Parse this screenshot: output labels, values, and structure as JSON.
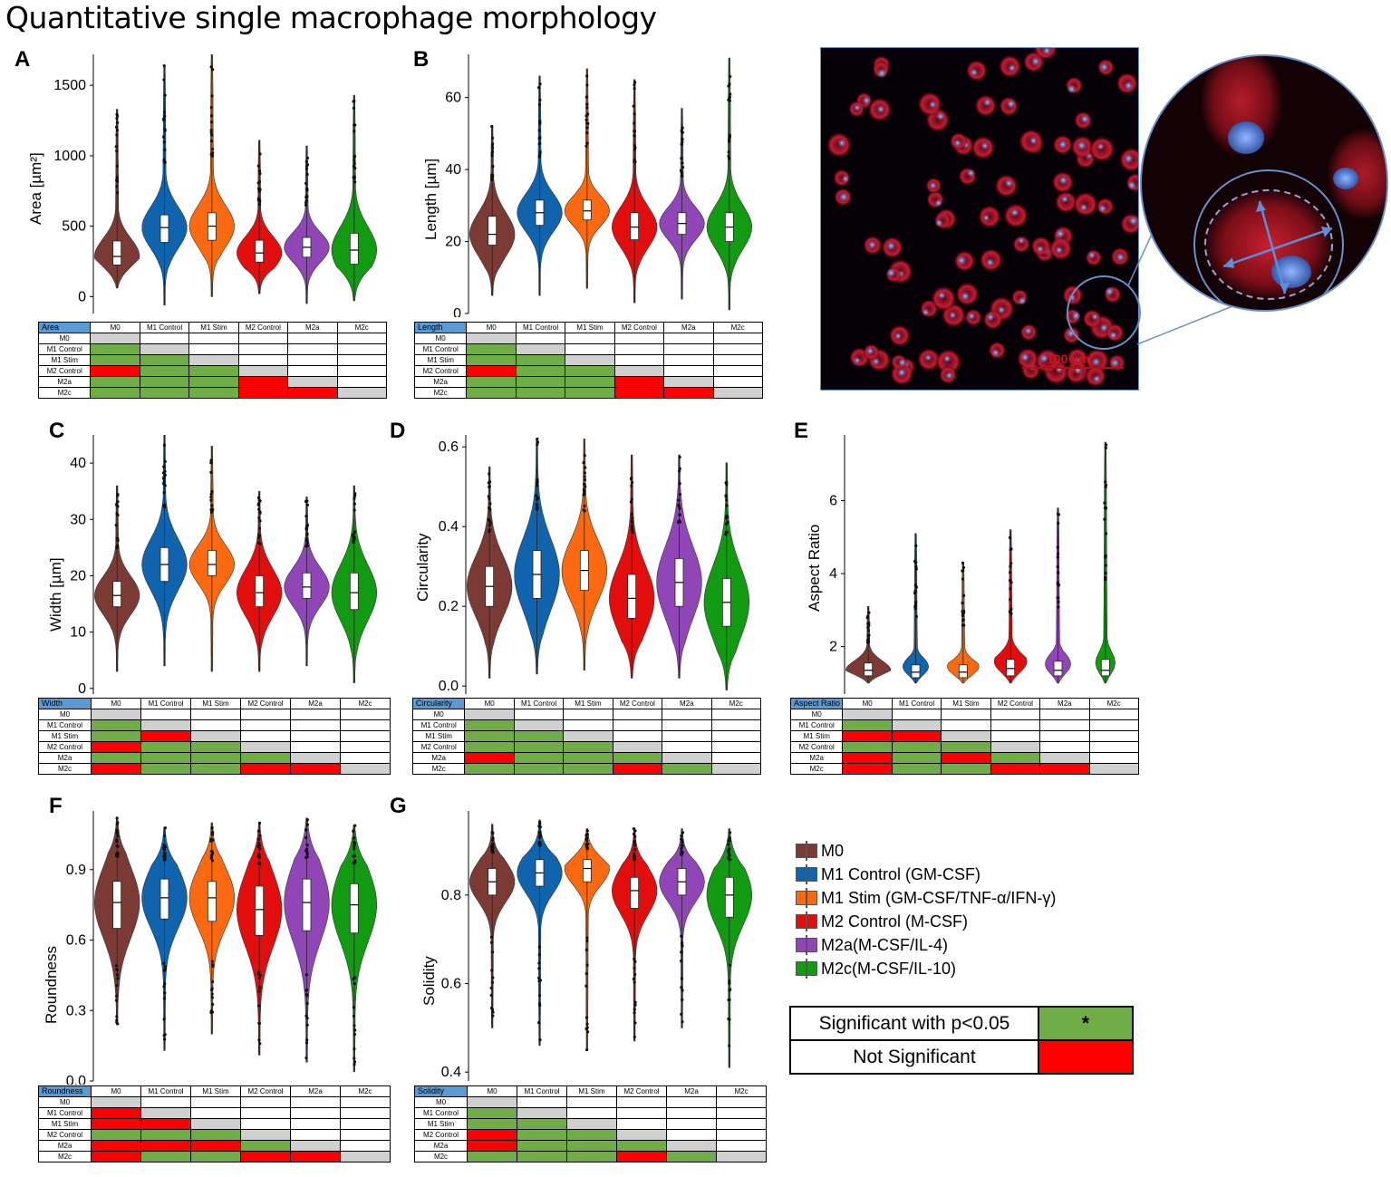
{
  "title": "Quantitative single macrophage morphology",
  "groups": [
    "M0",
    "M1 Control",
    "M1 Stim",
    "M2 Control",
    "M2a",
    "M2c"
  ],
  "colors": [
    "#7b3b34",
    "#1064ad",
    "#fb6a10",
    "#e20e0e",
    "#9146b8",
    "#129a12"
  ],
  "legend": {
    "items": [
      "M0",
      "M1 Control (GM-CSF)",
      "M1 Stim (GM-CSF/TNF-α/IFN-γ)",
      "M2 Control (M-CSF)",
      "M2a(M-CSF/IL-4)",
      "M2c(M-CSF/IL-10)"
    ],
    "significant_label": "Significant with p<0.05",
    "significant_symbol": "*",
    "not_significant_label": "Not Significant",
    "significant_color": "#70ad47",
    "not_significant_color": "#ff0000"
  },
  "micrograph": {
    "scale_label": "100 µm"
  },
  "chart_data": [
    {
      "type": "violin",
      "letter": "A",
      "ylabel": "Area [µm²]",
      "ylim": [
        -120,
        1720
      ],
      "yticks": [
        0,
        500,
        1000,
        1500
      ],
      "ytick_labels": [
        "0",
        "500",
        "1000",
        "1500"
      ],
      "series": [
        {
          "median": 285,
          "q1": 225,
          "q3": 395,
          "min": 60,
          "max": 1330
        },
        {
          "median": 490,
          "q1": 385,
          "q3": 580,
          "min": -60,
          "max": 1640
        },
        {
          "median": 500,
          "q1": 400,
          "q3": 595,
          "min": 0,
          "max": 1740
        },
        {
          "median": 310,
          "q1": 245,
          "q3": 400,
          "min": 20,
          "max": 1110
        },
        {
          "median": 350,
          "q1": 280,
          "q3": 420,
          "min": -50,
          "max": 1070
        },
        {
          "median": 330,
          "q1": 230,
          "q3": 450,
          "min": -30,
          "max": 1430
        }
      ],
      "table": {
        "corner": "Area",
        "cells": [
          [],
          [
            "g"
          ],
          [
            "g",
            "g"
          ],
          [
            "r",
            "g",
            "g"
          ],
          [
            "g",
            "g",
            "g",
            "r"
          ],
          [
            "g",
            "g",
            "g",
            "r",
            "r"
          ]
        ]
      }
    },
    {
      "type": "violin",
      "letter": "B",
      "ylabel": "Length [µm]",
      "ylim": [
        0,
        72
      ],
      "yticks": [
        0,
        20,
        40,
        60
      ],
      "ytick_labels": [
        "0",
        "20",
        "40",
        "60"
      ],
      "series": [
        {
          "median": 22,
          "q1": 19,
          "q3": 27,
          "min": 5,
          "max": 52
        },
        {
          "median": 28,
          "q1": 24.5,
          "q3": 31.5,
          "min": 5,
          "max": 66
        },
        {
          "median": 28.5,
          "q1": 26,
          "q3": 31.5,
          "min": 7,
          "max": 68
        },
        {
          "median": 24,
          "q1": 20.5,
          "q3": 28,
          "min": 3,
          "max": 65
        },
        {
          "median": 25,
          "q1": 22,
          "q3": 28,
          "min": 4,
          "max": 57
        },
        {
          "median": 24,
          "q1": 20,
          "q3": 28,
          "min": 1,
          "max": 71
        }
      ],
      "table": {
        "corner": "Length",
        "cells": [
          [],
          [
            "g"
          ],
          [
            "g",
            "g"
          ],
          [
            "r",
            "g",
            "g"
          ],
          [
            "g",
            "g",
            "g",
            "r"
          ],
          [
            "g",
            "g",
            "g",
            "r",
            "r"
          ]
        ]
      }
    },
    {
      "type": "violin",
      "letter": "C",
      "ylabel": "Width [µm]",
      "ylim": [
        -1,
        45
      ],
      "yticks": [
        0,
        10,
        20,
        30,
        40
      ],
      "ytick_labels": [
        "0",
        "10",
        "20",
        "30",
        "40"
      ],
      "series": [
        {
          "median": 16.5,
          "q1": 14.5,
          "q3": 19,
          "min": 3,
          "max": 36
        },
        {
          "median": 22,
          "q1": 19,
          "q3": 25,
          "min": 4,
          "max": 45
        },
        {
          "median": 22,
          "q1": 20,
          "q3": 24.5,
          "min": 3,
          "max": 43
        },
        {
          "median": 17,
          "q1": 14.5,
          "q3": 20,
          "min": 3,
          "max": 35
        },
        {
          "median": 18,
          "q1": 16,
          "q3": 20.5,
          "min": 4,
          "max": 34
        },
        {
          "median": 17,
          "q1": 14,
          "q3": 20.5,
          "min": 1,
          "max": 36
        }
      ],
      "table": {
        "corner": "Width",
        "cells": [
          [],
          [
            "g"
          ],
          [
            "g",
            "r"
          ],
          [
            "r",
            "g",
            "g"
          ],
          [
            "g",
            "g",
            "g",
            "g"
          ],
          [
            "r",
            "g",
            "g",
            "r",
            "r"
          ]
        ]
      }
    },
    {
      "type": "violin",
      "letter": "D",
      "ylabel": "Circularity",
      "ylim": [
        -0.02,
        0.63
      ],
      "yticks": [
        0.0,
        0.2,
        0.4,
        0.6
      ],
      "ytick_labels": [
        "0.0",
        "0.2",
        "0.4",
        "0.6"
      ],
      "series": [
        {
          "median": 0.25,
          "q1": 0.2,
          "q3": 0.3,
          "min": 0.02,
          "max": 0.55
        },
        {
          "median": 0.28,
          "q1": 0.22,
          "q3": 0.34,
          "min": 0.03,
          "max": 0.62
        },
        {
          "median": 0.29,
          "q1": 0.24,
          "q3": 0.34,
          "min": 0.04,
          "max": 0.62
        },
        {
          "median": 0.22,
          "q1": 0.17,
          "q3": 0.28,
          "min": 0.02,
          "max": 0.58
        },
        {
          "median": 0.26,
          "q1": 0.2,
          "q3": 0.32,
          "min": 0.02,
          "max": 0.58
        },
        {
          "median": 0.21,
          "q1": 0.15,
          "q3": 0.27,
          "min": -0.01,
          "max": 0.56
        }
      ],
      "table": {
        "corner": "Circularity",
        "cells": [
          [],
          [
            "g"
          ],
          [
            "g",
            "g"
          ],
          [
            "g",
            "g",
            "g"
          ],
          [
            "r",
            "g",
            "g",
            "g"
          ],
          [
            "g",
            "g",
            "g",
            "r",
            "g"
          ]
        ]
      }
    },
    {
      "type": "violin",
      "letter": "E",
      "ylabel": "Aspect Ratio",
      "ylim": [
        0.7,
        7.8
      ],
      "yticks": [
        2,
        4,
        6
      ],
      "ytick_labels": [
        "2",
        "4",
        "6"
      ],
      "series": [
        {
          "median": 1.35,
          "q1": 1.2,
          "q3": 1.55,
          "min": 1.0,
          "max": 3.1
        },
        {
          "median": 1.3,
          "q1": 1.15,
          "q3": 1.5,
          "min": 1.0,
          "max": 5.1
        },
        {
          "median": 1.3,
          "q1": 1.15,
          "q3": 1.5,
          "min": 1.0,
          "max": 4.3
        },
        {
          "median": 1.4,
          "q1": 1.2,
          "q3": 1.65,
          "min": 1.0,
          "max": 5.2
        },
        {
          "median": 1.35,
          "q1": 1.2,
          "q3": 1.6,
          "min": 1.0,
          "max": 5.8
        },
        {
          "median": 1.35,
          "q1": 1.2,
          "q3": 1.65,
          "min": 1.0,
          "max": 7.6
        }
      ],
      "table": {
        "corner": "Aspect Ratio",
        "cells": [
          [],
          [
            "g"
          ],
          [
            "r",
            "r"
          ],
          [
            "g",
            "g",
            "g"
          ],
          [
            "r",
            "g",
            "r",
            "g"
          ],
          [
            "r",
            "g",
            "g",
            "r",
            "r"
          ]
        ]
      }
    },
    {
      "type": "violin",
      "letter": "F",
      "ylabel": "Roundness",
      "ylim": [
        0,
        1.15
      ],
      "yticks": [
        0.0,
        0.3,
        0.6,
        0.9
      ],
      "ytick_labels": [
        "0.0",
        "0.3",
        "0.6",
        "0.9"
      ],
      "series": [
        {
          "median": 0.76,
          "q1": 0.65,
          "q3": 0.85,
          "min": 0.24,
          "max": 1.12
        },
        {
          "median": 0.78,
          "q1": 0.69,
          "q3": 0.86,
          "min": 0.13,
          "max": 1.08
        },
        {
          "median": 0.78,
          "q1": 0.68,
          "q3": 0.85,
          "min": 0.2,
          "max": 1.1
        },
        {
          "median": 0.73,
          "q1": 0.62,
          "q3": 0.83,
          "min": 0.11,
          "max": 1.1
        },
        {
          "median": 0.76,
          "q1": 0.64,
          "q3": 0.86,
          "min": 0.08,
          "max": 1.12
        },
        {
          "median": 0.75,
          "q1": 0.63,
          "q3": 0.84,
          "min": 0.04,
          "max": 1.09
        }
      ],
      "table": {
        "corner": "Roundness",
        "cells": [
          [],
          [
            "r"
          ],
          [
            "r",
            "r"
          ],
          [
            "g",
            "g",
            "g"
          ],
          [
            "r",
            "r",
            "r",
            "g"
          ],
          [
            "r",
            "g",
            "g",
            "r",
            "r"
          ]
        ]
      }
    },
    {
      "type": "violin",
      "letter": "G",
      "ylabel": "Solidity",
      "ylim": [
        0.38,
        0.99
      ],
      "yticks": [
        0.4,
        0.6,
        0.8
      ],
      "ytick_labels": [
        "0.4",
        "0.6",
        "0.8"
      ],
      "series": [
        {
          "median": 0.83,
          "q1": 0.8,
          "q3": 0.86,
          "min": 0.5,
          "max": 0.96
        },
        {
          "median": 0.85,
          "q1": 0.82,
          "q3": 0.88,
          "min": 0.46,
          "max": 0.97
        },
        {
          "median": 0.86,
          "q1": 0.83,
          "q3": 0.88,
          "min": 0.45,
          "max": 0.95
        },
        {
          "median": 0.81,
          "q1": 0.77,
          "q3": 0.84,
          "min": 0.47,
          "max": 0.95
        },
        {
          "median": 0.83,
          "q1": 0.8,
          "q3": 0.86,
          "min": 0.5,
          "max": 0.95
        },
        {
          "median": 0.8,
          "q1": 0.75,
          "q3": 0.84,
          "min": 0.41,
          "max": 0.95
        }
      ],
      "table": {
        "corner": "Solidity",
        "cells": [
          [],
          [
            "g"
          ],
          [
            "g",
            "g"
          ],
          [
            "r",
            "g",
            "g"
          ],
          [
            "r",
            "g",
            "g",
            "g"
          ],
          [
            "g",
            "g",
            "g",
            "r",
            "g"
          ]
        ]
      }
    }
  ]
}
